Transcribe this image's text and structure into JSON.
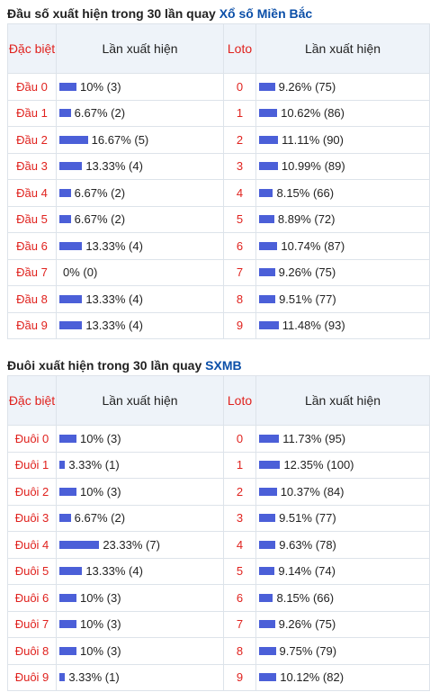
{
  "dau": {
    "title_prefix": "Đầu số xuất hiện trong 30 lần quay",
    "title_highlight": "Xổ số Miền Bắc",
    "headers": {
      "label": "Đặc biệt",
      "count": "Lần xuất hiện",
      "loto": "Loto",
      "loto_count": "Lần xuất hiện"
    },
    "rows": [
      {
        "label": "Đầu 0",
        "pct": 10,
        "text": "10% (3)",
        "loto": "0",
        "loto_pct": 9.26,
        "loto_text": "9.26% (75)"
      },
      {
        "label": "Đầu 1",
        "pct": 6.67,
        "text": "6.67% (2)",
        "loto": "1",
        "loto_pct": 10.62,
        "loto_text": "10.62% (86)"
      },
      {
        "label": "Đầu 2",
        "pct": 16.67,
        "text": "16.67% (5)",
        "loto": "2",
        "loto_pct": 11.11,
        "loto_text": "11.11% (90)"
      },
      {
        "label": "Đầu 3",
        "pct": 13.33,
        "text": "13.33% (4)",
        "loto": "3",
        "loto_pct": 10.99,
        "loto_text": "10.99% (89)"
      },
      {
        "label": "Đầu 4",
        "pct": 6.67,
        "text": "6.67% (2)",
        "loto": "4",
        "loto_pct": 8.15,
        "loto_text": "8.15% (66)"
      },
      {
        "label": "Đầu 5",
        "pct": 6.67,
        "text": "6.67% (2)",
        "loto": "5",
        "loto_pct": 8.89,
        "loto_text": "8.89% (72)"
      },
      {
        "label": "Đầu 6",
        "pct": 13.33,
        "text": "13.33% (4)",
        "loto": "6",
        "loto_pct": 10.74,
        "loto_text": "10.74% (87)"
      },
      {
        "label": "Đầu 7",
        "pct": 0,
        "text": "0% (0)",
        "loto": "7",
        "loto_pct": 9.26,
        "loto_text": "9.26% (75)"
      },
      {
        "label": "Đầu 8",
        "pct": 13.33,
        "text": "13.33% (4)",
        "loto": "8",
        "loto_pct": 9.51,
        "loto_text": "9.51% (77)"
      },
      {
        "label": "Đầu 9",
        "pct": 13.33,
        "text": "13.33% (4)",
        "loto": "9",
        "loto_pct": 11.48,
        "loto_text": "11.48% (93)"
      }
    ]
  },
  "duoi": {
    "title_prefix": "Đuôi xuất hiện trong 30 lần quay",
    "title_highlight": "SXMB",
    "headers": {
      "label": "Đặc biệt",
      "count": "Lần xuất hiện",
      "loto": "Loto",
      "loto_count": "Lần xuất hiện"
    },
    "rows": [
      {
        "label": "Đuôi 0",
        "pct": 10,
        "text": "10% (3)",
        "loto": "0",
        "loto_pct": 11.73,
        "loto_text": "11.73% (95)"
      },
      {
        "label": "Đuôi 1",
        "pct": 3.33,
        "text": "3.33% (1)",
        "loto": "1",
        "loto_pct": 12.35,
        "loto_text": "12.35% (100)"
      },
      {
        "label": "Đuôi 2",
        "pct": 10,
        "text": "10% (3)",
        "loto": "2",
        "loto_pct": 10.37,
        "loto_text": "10.37% (84)"
      },
      {
        "label": "Đuôi 3",
        "pct": 6.67,
        "text": "6.67% (2)",
        "loto": "3",
        "loto_pct": 9.51,
        "loto_text": "9.51% (77)"
      },
      {
        "label": "Đuôi 4",
        "pct": 23.33,
        "text": "23.33% (7)",
        "loto": "4",
        "loto_pct": 9.63,
        "loto_text": "9.63% (78)"
      },
      {
        "label": "Đuôi 5",
        "pct": 13.33,
        "text": "13.33% (4)",
        "loto": "5",
        "loto_pct": 9.14,
        "loto_text": "9.14% (74)"
      },
      {
        "label": "Đuôi 6",
        "pct": 10,
        "text": "10% (3)",
        "loto": "6",
        "loto_pct": 8.15,
        "loto_text": "8.15% (66)"
      },
      {
        "label": "Đuôi 7",
        "pct": 10,
        "text": "10% (3)",
        "loto": "7",
        "loto_pct": 9.26,
        "loto_text": "9.26% (75)"
      },
      {
        "label": "Đuôi 8",
        "pct": 10,
        "text": "10% (3)",
        "loto": "8",
        "loto_pct": 9.75,
        "loto_text": "9.75% (79)"
      },
      {
        "label": "Đuôi 9",
        "pct": 3.33,
        "text": "3.33% (1)",
        "loto": "9",
        "loto_pct": 10.12,
        "loto_text": "10.12% (82)"
      }
    ]
  },
  "colors": {
    "bar": "#4b5fd8",
    "label_red": "#e0221e",
    "title_blue": "#0b4fa8",
    "header_bg": "#eef3f9"
  }
}
